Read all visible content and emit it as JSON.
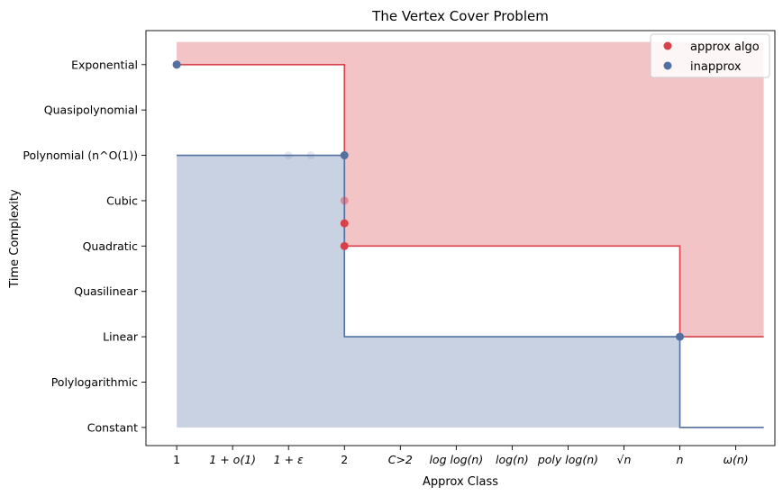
{
  "chart_data": {
    "type": "step",
    "title": "The Vertex Cover Problem",
    "xlabel": "Approx Class",
    "ylabel": "Time Complexity",
    "x_ticks": [
      {
        "label": "1",
        "math": false
      },
      {
        "label": "1 + o(1)",
        "math": true
      },
      {
        "label": "1 + ε",
        "math": true
      },
      {
        "label": "2",
        "math": false
      },
      {
        "label": "C>2",
        "math": true
      },
      {
        "label": "log log(n)",
        "math": true
      },
      {
        "label": "log(n)",
        "math": true
      },
      {
        "label": "poly log(n)",
        "math": true
      },
      {
        "label": "√n",
        "math": true
      },
      {
        "label": "n",
        "math": true
      },
      {
        "label": "ω(n)",
        "math": true
      }
    ],
    "y_ticks": [
      "Constant",
      "Polylogarithmic",
      "Linear",
      "Quasilinear",
      "Quadratic",
      "Cubic",
      "Polynomial (n^O(1))",
      "Quasipolynomial",
      "Exponential"
    ],
    "series": [
      {
        "name": "approx algo",
        "color": "#d9414a",
        "fill_color": "#f2c4c6",
        "step_upper_bound": [
          [
            0,
            8
          ],
          [
            3,
            8
          ],
          [
            3,
            4
          ],
          [
            9,
            4
          ],
          [
            9,
            2
          ],
          [
            10.5,
            2
          ]
        ],
        "points": [
          [
            0,
            8,
            1.0
          ],
          [
            3,
            4,
            1.0
          ],
          [
            3,
            4.5,
            1.0
          ],
          [
            3,
            5,
            0.45
          ]
        ]
      },
      {
        "name": "inapprox",
        "color": "#5470a1",
        "fill_color": "#c9d2e2",
        "step_lower_bound": [
          [
            0,
            6
          ],
          [
            3,
            6
          ],
          [
            3,
            2
          ],
          [
            9,
            2
          ],
          [
            9,
            0
          ],
          [
            10.5,
            0
          ]
        ],
        "points": [
          [
            0,
            8,
            1.0
          ],
          [
            3,
            6,
            1.0
          ],
          [
            9,
            2,
            1.0
          ],
          [
            2,
            6,
            0.15
          ],
          [
            2.4,
            6,
            0.15
          ]
        ]
      }
    ],
    "xlim": [
      -0.55,
      10.7
    ],
    "ylim": [
      -0.4,
      8.75
    ],
    "grid": false,
    "legend_position": "top-right"
  }
}
